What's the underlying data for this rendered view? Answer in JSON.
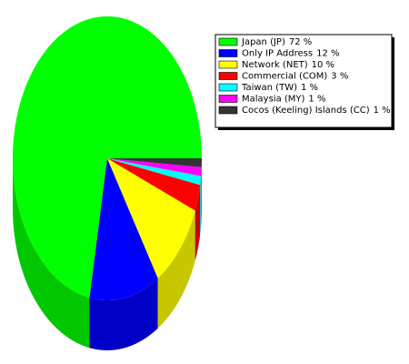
{
  "chart_data": {
    "type": "pie",
    "categories": [
      "Japan (JP)",
      "Only IP Address",
      "Network (NET)",
      "Commercial (COM)",
      "Taiwan (TW)",
      "Malaysia (MY)",
      "Cocos (Keeling) Islands (CC)"
    ],
    "values": [
      72,
      12,
      10,
      3,
      1,
      1,
      1
    ],
    "value_labels": [
      "72 %",
      "12 %",
      "10 %",
      "3 %",
      "1 %",
      "1 %",
      "1 %"
    ],
    "colors": [
      "#00ff00",
      "#0000ff",
      "#ffff00",
      "#ff0000",
      "#00ffff",
      "#ff00ff",
      "#333333"
    ]
  }
}
